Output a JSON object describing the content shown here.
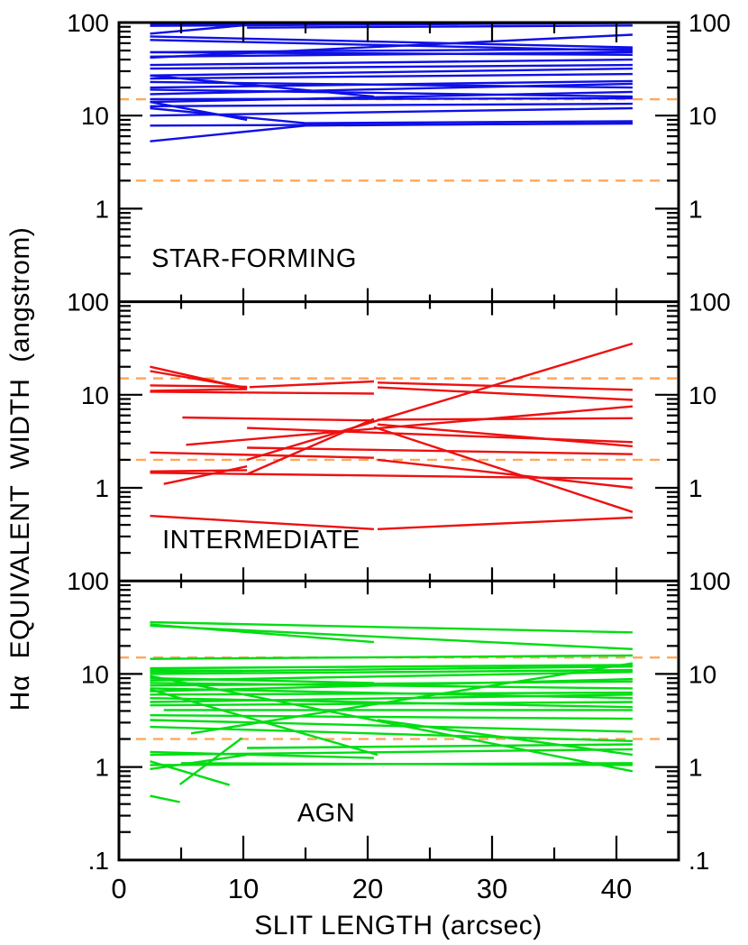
{
  "chart_data": {
    "type": "line",
    "title": "",
    "xlabel": "SLIT LENGTH (arcsec)",
    "ylabel": "Hα EQUIVALENT WIDTH (angstrom)",
    "x_unit": "arcsec",
    "y_unit": "angstrom",
    "xlim": [
      0,
      45
    ],
    "y_scale": "log",
    "panel_ylim": [
      0.1,
      100
    ],
    "grid": false,
    "x_major_ticks": [
      0,
      10,
      20,
      30,
      40
    ],
    "x_minor_ticks": [
      5,
      15,
      25,
      35
    ],
    "y_major_tick_labels": [
      "100",
      "10",
      "1"
    ],
    "y_axis_bottom_label": ".1",
    "threshold_lines": {
      "values": [
        15,
        2
      ],
      "style": "dashed",
      "color": "#ffa85a"
    },
    "frame_color": "#000000",
    "panels": [
      {
        "label": "STAR-FORMING",
        "color": "#0f10e6",
        "label_xy": [
          10.9,
          0.29
        ],
        "series": [
          {
            "points": [
              [
                2.5,
                92
              ],
              [
                41.3,
                99
              ]
            ]
          },
          {
            "points": [
              [
                2.5,
                96
              ],
              [
                20.5,
                99
              ]
            ]
          },
          {
            "points": [
              [
                10.3,
                88
              ],
              [
                41.3,
                93
              ]
            ]
          },
          {
            "points": [
              [
                2.5,
                76
              ],
              [
                10.3,
                94
              ]
            ]
          },
          {
            "points": [
              [
                2.5,
                71
              ],
              [
                41.3,
                54
              ]
            ]
          },
          {
            "points": [
              [
                2.5,
                65
              ],
              [
                41.3,
                50
              ]
            ]
          },
          {
            "points": [
              [
                2.5,
                48
              ],
              [
                41.3,
                52
              ]
            ]
          },
          {
            "points": [
              [
                2.5,
                48
              ],
              [
                41.3,
                45
              ]
            ]
          },
          {
            "points": [
              [
                2.5,
                43
              ],
              [
                41.3,
                48
              ]
            ]
          },
          {
            "points": [
              [
                2.5,
                42
              ],
              [
                41.3,
                74
              ]
            ]
          },
          {
            "points": [
              [
                2.5,
                35
              ],
              [
                41.3,
                40
              ]
            ]
          },
          {
            "points": [
              [
                2.5,
                32
              ],
              [
                41.3,
                35
              ]
            ]
          },
          {
            "points": [
              [
                2.5,
                27
              ],
              [
                41.3,
                32
              ]
            ]
          },
          {
            "points": [
              [
                2.5,
                27
              ],
              [
                20.5,
                16
              ]
            ]
          },
          {
            "points": [
              [
                2.5,
                25
              ],
              [
                41.3,
                28
              ]
            ]
          },
          {
            "points": [
              [
                2.5,
                23
              ],
              [
                41.3,
                20
              ]
            ]
          },
          {
            "points": [
              [
                2.5,
                20
              ],
              [
                41.3,
                23.5
              ]
            ]
          },
          {
            "points": [
              [
                2.5,
                17
              ],
              [
                41.3,
                22
              ]
            ]
          },
          {
            "points": [
              [
                2.5,
                19
              ],
              [
                41.3,
                16
              ]
            ]
          },
          {
            "points": [
              [
                2.5,
                14
              ],
              [
                41.3,
                18
              ]
            ]
          },
          {
            "points": [
              [
                2.5,
                15
              ],
              [
                41.3,
                15.3
              ]
            ]
          },
          {
            "points": [
              [
                2.5,
                12.6
              ],
              [
                41.3,
                13.4
              ]
            ]
          },
          {
            "points": [
              [
                2.5,
                14
              ],
              [
                10.3,
                9
              ]
            ]
          },
          {
            "points": [
              [
                2.5,
                12
              ],
              [
                15,
                8.3
              ],
              [
                41.3,
                8.7
              ]
            ]
          },
          {
            "points": [
              [
                2.5,
                10
              ],
              [
                41.3,
                12
              ]
            ]
          },
          {
            "points": [
              [
                2.5,
                7.8
              ],
              [
                41.3,
                8.2
              ]
            ]
          },
          {
            "points": [
              [
                2.5,
                5.3
              ],
              [
                15,
                7.8
              ],
              [
                41.3,
                8.3
              ]
            ]
          }
        ]
      },
      {
        "label": "INTERMEDIATE",
        "color": "#ee1010",
        "label_xy": [
          11.4,
          0.27
        ],
        "series": [
          {
            "points": [
              [
                2.5,
                20
              ],
              [
                10.3,
                11.6
              ]
            ]
          },
          {
            "points": [
              [
                2.5,
                18
              ],
              [
                10.3,
                11.9
              ]
            ]
          },
          {
            "points": [
              [
                2.5,
                12.6
              ],
              [
                10.3,
                12.2
              ]
            ]
          },
          {
            "points": [
              [
                2.5,
                11
              ],
              [
                10.3,
                11.5
              ]
            ]
          },
          {
            "points": [
              [
                2.5,
                10.8
              ],
              [
                20.5,
                10.3
              ]
            ]
          },
          {
            "points": [
              [
                10.5,
                12.1
              ],
              [
                20.5,
                13.9
              ]
            ]
          },
          {
            "points": [
              [
                20.8,
                13.5
              ],
              [
                41.3,
                11.3
              ]
            ]
          },
          {
            "points": [
              [
                20.8,
                12
              ],
              [
                41.3,
                8.8
              ]
            ]
          },
          {
            "points": [
              [
                5.1,
                5.7
              ],
              [
                20.5,
                5.3
              ]
            ]
          },
          {
            "points": [
              [
                20.8,
                5.4
              ],
              [
                41.3,
                5.6
              ]
            ]
          },
          {
            "points": [
              [
                5.4,
                2.9
              ],
              [
                41.3,
                7.5
              ]
            ]
          },
          {
            "points": [
              [
                10.3,
                4.4
              ],
              [
                41.3,
                3.1
              ]
            ]
          },
          {
            "points": [
              [
                2.5,
                2.4
              ],
              [
                20.5,
                2.1
              ]
            ]
          },
          {
            "points": [
              [
                10.3,
                2.7
              ],
              [
                41.3,
                2.3
              ]
            ]
          },
          {
            "points": [
              [
                20.8,
                4.8
              ],
              [
                41.3,
                2.8
              ]
            ]
          },
          {
            "points": [
              [
                20.8,
                2.0
              ],
              [
                41.3,
                1.0
              ]
            ]
          },
          {
            "points": [
              [
                2.5,
                1.5
              ],
              [
                10.3,
                1.55
              ]
            ]
          },
          {
            "points": [
              [
                3.6,
                1.1
              ],
              [
                10.3,
                1.7
              ]
            ]
          },
          {
            "points": [
              [
                2.5,
                1.45
              ],
              [
                41.3,
                1.25
              ]
            ]
          },
          {
            "points": [
              [
                10.3,
                2.0
              ],
              [
                41.3,
                35.5
              ]
            ]
          },
          {
            "points": [
              [
                10.3,
                1.4
              ],
              [
                20.5,
                5.5
              ]
            ]
          },
          {
            "points": [
              [
                20.5,
                4.5
              ],
              [
                41.3,
                0.55
              ]
            ]
          },
          {
            "points": [
              [
                2.5,
                0.5
              ],
              [
                20.5,
                0.36
              ]
            ]
          },
          {
            "points": [
              [
                20.8,
                0.36
              ],
              [
                41.3,
                0.48
              ]
            ]
          }
        ]
      },
      {
        "label": "AGN",
        "color": "#00dd12",
        "label_xy": [
          16.7,
          0.29
        ],
        "series": [
          {
            "points": [
              [
                2.5,
                36
              ],
              [
                41.3,
                28
              ]
            ]
          },
          {
            "points": [
              [
                2.5,
                34
              ],
              [
                20.5,
                22
              ]
            ]
          },
          {
            "points": [
              [
                2.5,
                33
              ],
              [
                41.3,
                18.5
              ]
            ]
          },
          {
            "points": [
              [
                2.5,
                14.5
              ],
              [
                41.3,
                15.8
              ]
            ]
          },
          {
            "points": [
              [
                2.5,
                11
              ],
              [
                9.9,
                10.8
              ]
            ]
          },
          {
            "points": [
              [
                2.5,
                11.5
              ],
              [
                41.3,
                12.5
              ]
            ]
          },
          {
            "points": [
              [
                2.5,
                10.5
              ],
              [
                41.3,
                12
              ]
            ]
          },
          {
            "points": [
              [
                2.5,
                10
              ],
              [
                41.3,
                11
              ]
            ]
          },
          {
            "points": [
              [
                2.5,
                9.5
              ],
              [
                41.3,
                0.9
              ]
            ]
          },
          {
            "points": [
              [
                2.5,
                9
              ],
              [
                20.5,
                8
              ]
            ]
          },
          {
            "points": [
              [
                2.5,
                8.5
              ],
              [
                41.3,
                10.5
              ]
            ]
          },
          {
            "points": [
              [
                2.5,
                8
              ],
              [
                41.3,
                7
              ]
            ]
          },
          {
            "points": [
              [
                2.5,
                7.5
              ],
              [
                41.3,
                8.3
              ]
            ]
          },
          {
            "points": [
              [
                2.5,
                7
              ],
              [
                41.3,
                5.5
              ]
            ]
          },
          {
            "points": [
              [
                2.5,
                6.8
              ],
              [
                20.8,
                1.35
              ]
            ]
          },
          {
            "points": [
              [
                2.5,
                6.5
              ],
              [
                41.3,
                8.8
              ]
            ]
          },
          {
            "points": [
              [
                2.5,
                6
              ],
              [
                41.3,
                6.3
              ]
            ]
          },
          {
            "points": [
              [
                2.5,
                5.5
              ],
              [
                41.3,
                4.4
              ]
            ]
          },
          {
            "points": [
              [
                2.5,
                5
              ],
              [
                41.3,
                6
              ]
            ]
          },
          {
            "points": [
              [
                2.5,
                4.6
              ],
              [
                41.3,
                5
              ]
            ]
          },
          {
            "points": [
              [
                3.6,
                4.1
              ],
              [
                41.3,
                4.1
              ]
            ]
          },
          {
            "points": [
              [
                2.5,
                3.6
              ],
              [
                41.3,
                3.3
              ]
            ]
          },
          {
            "points": [
              [
                2.5,
                3.2
              ],
              [
                41.3,
                2.4
              ]
            ]
          },
          {
            "points": [
              [
                2.5,
                2.7
              ],
              [
                41.3,
                1.9
              ]
            ]
          },
          {
            "points": [
              [
                5.8,
                2.3
              ],
              [
                41.3,
                13
              ]
            ]
          },
          {
            "points": [
              [
                20.8,
                3.2
              ],
              [
                41.3,
                1.35
              ]
            ]
          },
          {
            "points": [
              [
                2.5,
                1.45
              ],
              [
                20.5,
                1.25
              ]
            ]
          },
          {
            "points": [
              [
                2.5,
                1.35
              ],
              [
                41.3,
                1.55
              ]
            ]
          },
          {
            "points": [
              [
                2.5,
                1.15
              ],
              [
                8.9,
                0.64
              ]
            ]
          },
          {
            "points": [
              [
                4.9,
                0.65
              ],
              [
                9.9,
                2.05
              ]
            ]
          },
          {
            "points": [
              [
                2.5,
                1.05
              ],
              [
                41.3,
                1.1
              ]
            ]
          },
          {
            "points": [
              [
                5,
                1.1
              ],
              [
                41.3,
                1.05
              ]
            ]
          },
          {
            "points": [
              [
                2.5,
                0.95
              ],
              [
                10.3,
                1.35
              ]
            ]
          },
          {
            "points": [
              [
                10.3,
                1.6
              ],
              [
                41.3,
                1.75
              ]
            ]
          },
          {
            "points": [
              [
                2.5,
                0.49
              ],
              [
                4.9,
                0.42
              ]
            ]
          }
        ]
      }
    ]
  }
}
